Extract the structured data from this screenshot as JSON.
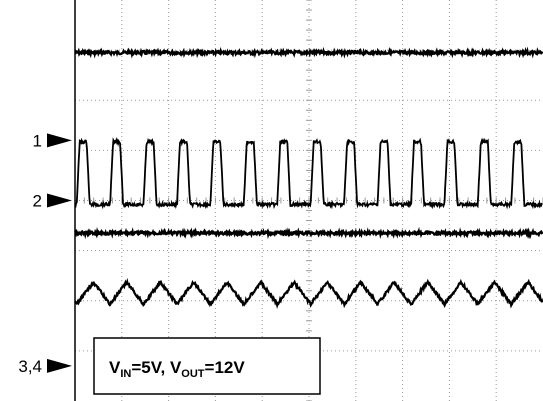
{
  "chart_data": {
    "type": "line",
    "title": "",
    "grid": true,
    "divisions": {
      "x": 10,
      "y": 8
    },
    "channel_markers": [
      {
        "label": "1",
        "division": 5.2
      },
      {
        "label": "2",
        "division": 4.0
      },
      {
        "label": "3,4",
        "division": 0.7
      }
    ],
    "series": [
      {
        "trace": "dc_top",
        "shape": "dc",
        "level_div": 6.95
      },
      {
        "trace": "switch_node",
        "shape": "square",
        "low_div": 3.92,
        "high_div": 5.17,
        "periods": 14,
        "duty": 0.3,
        "phase": 0.05
      },
      {
        "trace": "dc_mid",
        "shape": "dc",
        "level_div": 3.35
      },
      {
        "trace": "ripple",
        "shape": "triangle",
        "center_div": 2.15,
        "amplitude_div": 0.22,
        "periods": 14,
        "phase": 0.05
      }
    ],
    "annotation": {
      "v_in_main": "V",
      "v_in_sub": "IN",
      "v_in_value": "=5V, ",
      "v_out_main": "V",
      "v_out_sub": "OUT",
      "v_out_value": "=12V"
    }
  }
}
